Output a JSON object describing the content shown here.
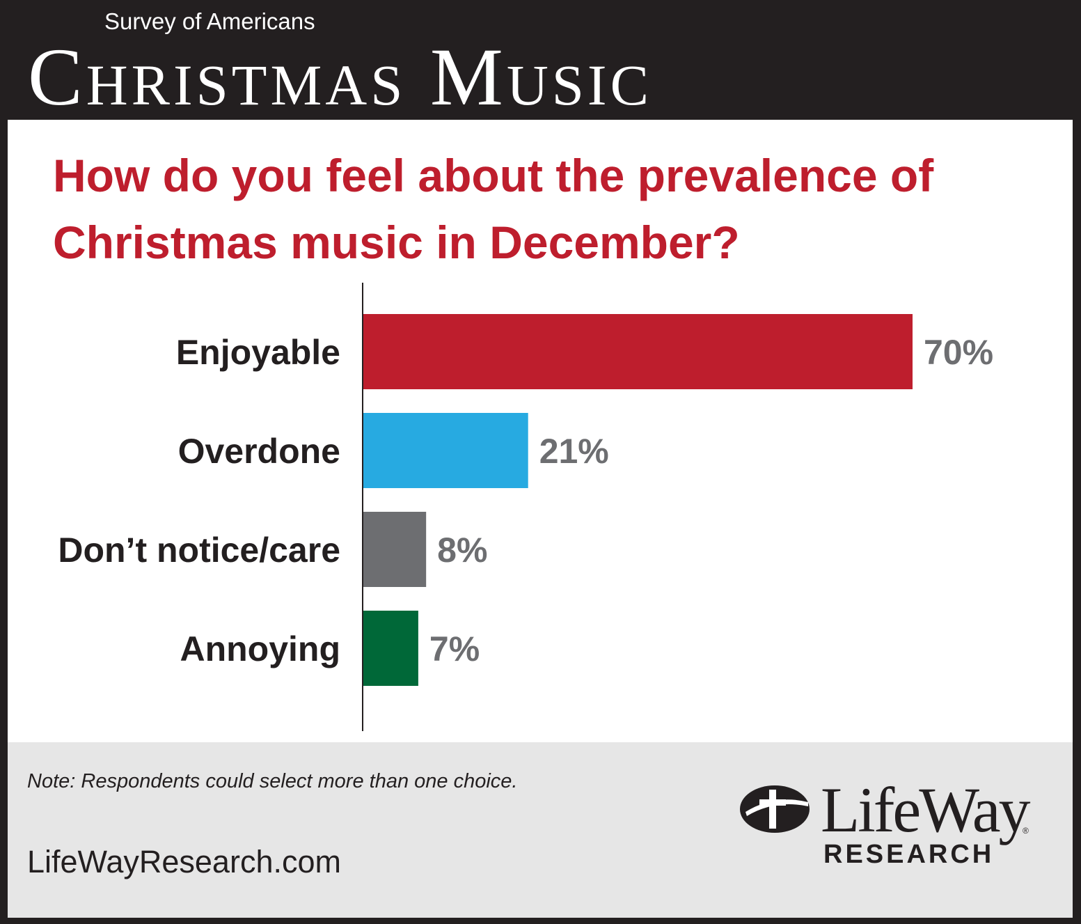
{
  "header": {
    "subtitle": "Survey of Americans",
    "title": "Christmas Music"
  },
  "question": "How do you feel about the prevalence of Christmas music in December?",
  "chart_data": {
    "type": "bar",
    "orientation": "horizontal",
    "categories": [
      "Enjoyable",
      "Overdone",
      "Don’t notice/care",
      "Annoying"
    ],
    "values": [
      70,
      21,
      8,
      7
    ],
    "value_labels": [
      "70%",
      "21%",
      "8%",
      "7%"
    ],
    "colors": [
      "#be1e2d",
      "#27aae1",
      "#6d6e71",
      "#006838"
    ],
    "xlim": [
      0,
      70
    ],
    "grid": false
  },
  "footer": {
    "note": "Note: Respondents could select more than one choice.",
    "website": "LifeWayResearch.com",
    "logo": {
      "name": "LifeWay",
      "sub": "RESEARCH",
      "registered": "®",
      "icon": "cross-circle-logo-icon"
    }
  },
  "colors": {
    "frame": "#231f20",
    "question": "#be1e2d",
    "footer_bg": "#e6e6e6"
  }
}
